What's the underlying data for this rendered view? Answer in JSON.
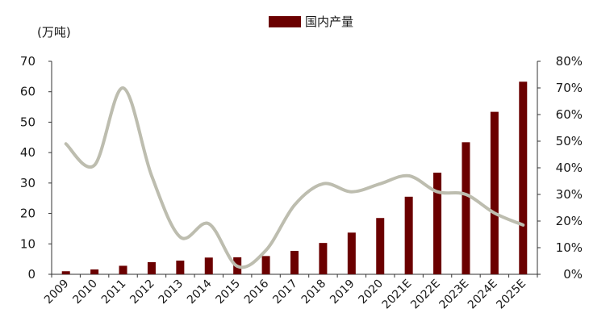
{
  "chart_data": {
    "type": "bar",
    "categories": [
      "2009",
      "2010",
      "2011",
      "2012",
      "2013",
      "2014",
      "2015",
      "2016",
      "2017",
      "2018",
      "2019",
      "2020",
      "2021E",
      "2022E",
      "2023E",
      "2024E",
      "2025E"
    ],
    "series": [
      {
        "name": "国内产量",
        "type": "bar",
        "axis": "left",
        "color": "#6b0000",
        "values": [
          1.0,
          1.6,
          2.8,
          4.0,
          4.5,
          5.5,
          5.6,
          6.0,
          7.7,
          10.3,
          13.7,
          18.5,
          25.5,
          33.4,
          43.4,
          53.4,
          63.3
        ]
      },
      {
        "type": "line",
        "axis": "right",
        "color": "#bdbdaf",
        "values": [
          0.49,
          0.41,
          0.7,
          0.37,
          0.14,
          0.19,
          0.03,
          0.09,
          0.26,
          0.34,
          0.31,
          0.34,
          0.37,
          0.31,
          0.3,
          0.23,
          0.185
        ]
      }
    ],
    "left_axis": {
      "unit_label": "(万吨)",
      "ylim": [
        0,
        70
      ],
      "ticks": [
        "0",
        "10",
        "20",
        "30",
        "40",
        "50",
        "60",
        "70"
      ]
    },
    "right_axis": {
      "ylim": [
        0,
        0.8
      ],
      "ticks": [
        "0%",
        "10%",
        "20%",
        "30%",
        "40%",
        "50%",
        "60%",
        "70%",
        "80%"
      ]
    },
    "legend": {
      "position": "top-center",
      "entries": [
        "国内产量"
      ]
    },
    "grid": false
  }
}
